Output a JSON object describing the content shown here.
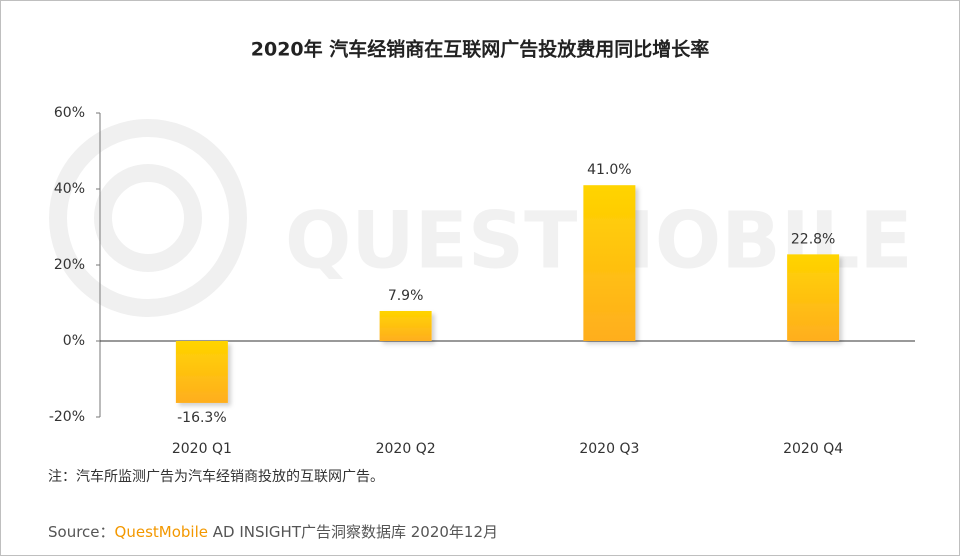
{
  "chart_data": {
    "type": "bar",
    "title": "2020年 汽车经销商在互联网广告投放费用同比增长率",
    "categories": [
      "2020 Q1",
      "2020 Q2",
      "2020 Q3",
      "2020 Q4"
    ],
    "values": [
      -16.3,
      7.9,
      41.0,
      22.8
    ],
    "value_labels": [
      "-16.3%",
      "7.9%",
      "41.0%",
      "22.8%"
    ],
    "gradient": [
      "#ffd400",
      "#ffae1f"
    ],
    "ylim": [
      -20,
      60
    ],
    "yticks": [
      {
        "value": -20,
        "label": "-20%"
      },
      {
        "value": 0,
        "label": "0%"
      },
      {
        "value": 20,
        "label": "20%"
      },
      {
        "value": 40,
        "label": "40%"
      },
      {
        "value": 60,
        "label": "60%"
      }
    ],
    "watermark": "QUESTMOBILE",
    "note": "注：汽车所监测广告为汽车经销商投放的互联网广告。",
    "source": {
      "prefix": "Source：",
      "brand": "QuestMobile",
      "rest": " AD INSIGHT广告洞察数据库 2020年12月"
    }
  }
}
